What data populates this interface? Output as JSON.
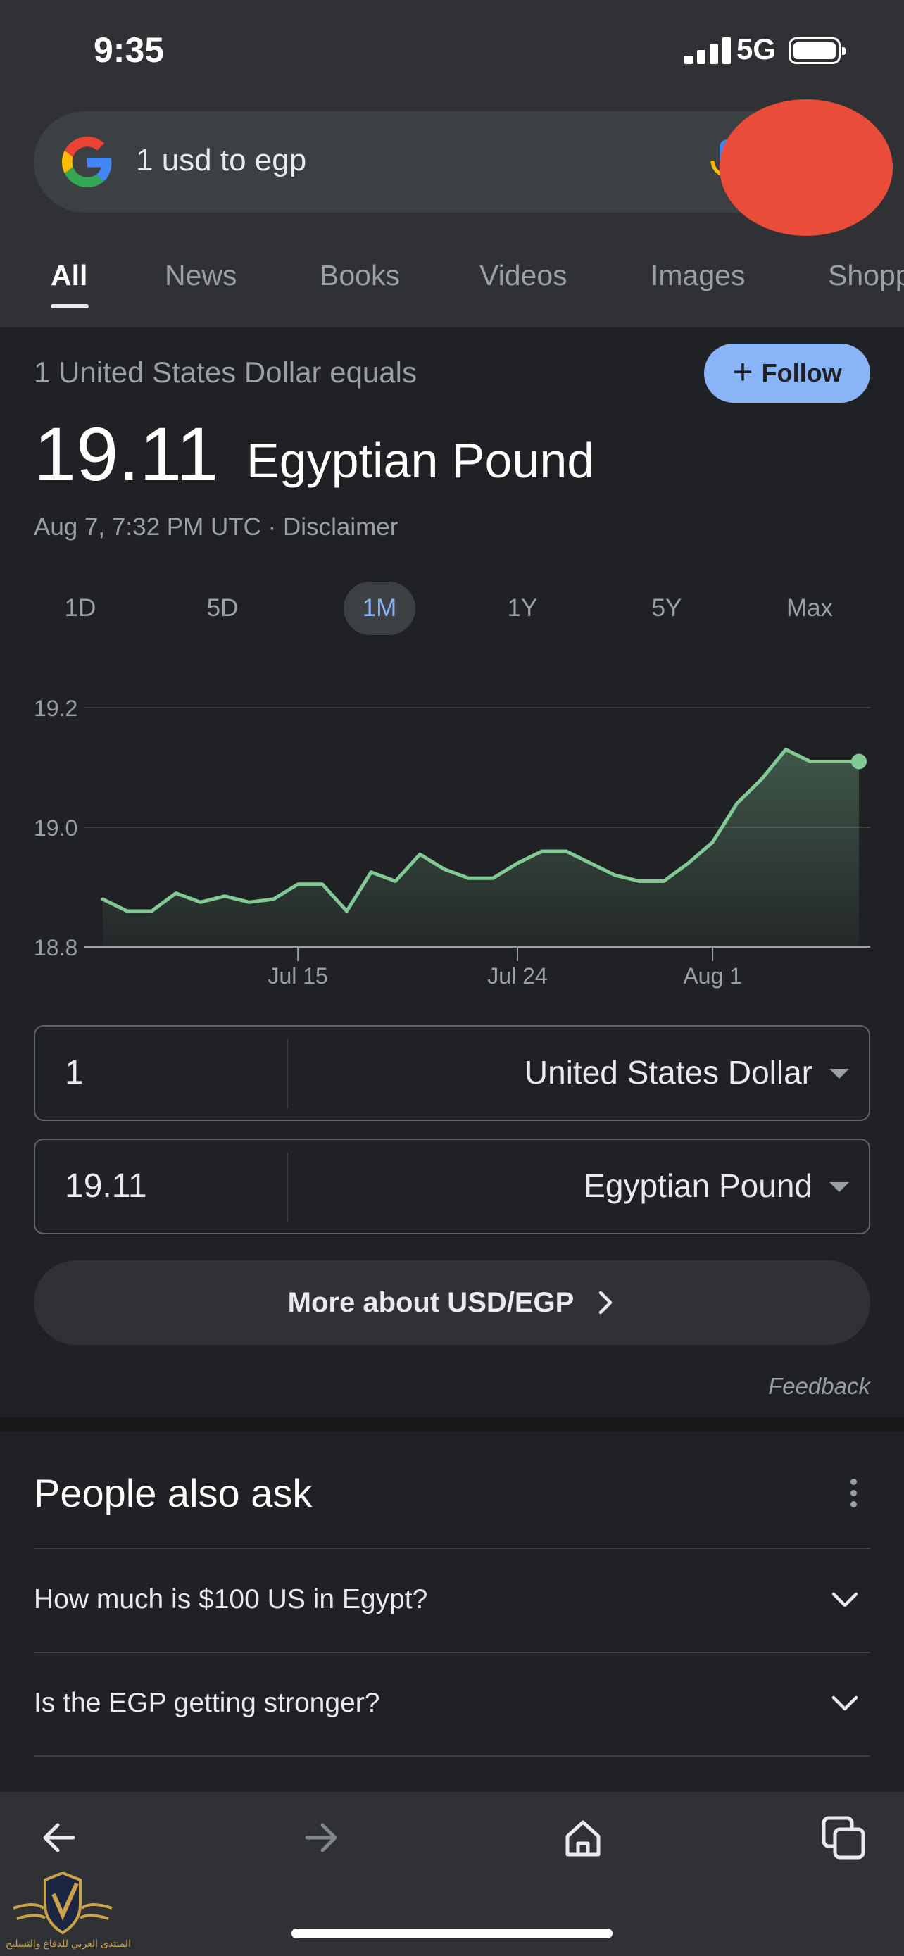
{
  "status_bar": {
    "time": "9:35",
    "network": "5G"
  },
  "search": {
    "query": "1 usd to egp"
  },
  "tabs": [
    {
      "label": "All",
      "active": true
    },
    {
      "label": "News"
    },
    {
      "label": "Books"
    },
    {
      "label": "Videos"
    },
    {
      "label": "Images"
    },
    {
      "label": "Shopp"
    }
  ],
  "converter": {
    "equals_text": "1 United States Dollar equals",
    "follow_label": "Follow",
    "rate_value": "19.11",
    "rate_currency": "Egyptian Pound",
    "timestamp_prefix": "Aug 7, 7:32 PM UTC · ",
    "disclaimer": "Disclaimer",
    "periods": [
      "1D",
      "5D",
      "1M",
      "1Y",
      "5Y",
      "Max"
    ],
    "active_period": "1M",
    "from": {
      "amount": "1",
      "currency": "United States Dollar"
    },
    "to": {
      "amount": "19.11",
      "currency": "Egyptian Pound"
    },
    "more_label": "More about USD/EGP",
    "feedback": "Feedback"
  },
  "chart_data": {
    "type": "area",
    "x_ticks": [
      "Jul 15",
      "Jul 24",
      "Aug 1"
    ],
    "y_ticks": [
      "19.2",
      "19.0",
      "18.8"
    ],
    "ylim": [
      18.8,
      19.2
    ],
    "grid": true,
    "line_color": "#81c995",
    "values": [
      18.88,
      18.86,
      18.86,
      18.89,
      18.875,
      18.885,
      18.875,
      18.88,
      18.905,
      18.905,
      18.86,
      18.925,
      18.91,
      18.955,
      18.93,
      18.915,
      18.915,
      18.94,
      18.96,
      18.96,
      18.94,
      18.92,
      18.91,
      18.91,
      18.94,
      18.975,
      19.04,
      19.08,
      19.13,
      19.11,
      19.11,
      19.11
    ]
  },
  "people_also_ask": {
    "title": "People also ask",
    "questions": [
      "How much is $100 US in Egypt?",
      "Is the EGP getting stronger?"
    ]
  },
  "icons": [
    "google-logo-icon",
    "mic-icon",
    "plus-icon",
    "chevron-right-icon",
    "more-vert-icon",
    "chevron-down-icon",
    "back-icon",
    "forward-icon",
    "home-icon",
    "tabs-icon"
  ],
  "colors": {
    "accent": "#8ab4f8",
    "chart_line": "#81c995",
    "redaction": "#ea4c3a",
    "background": "#202124"
  },
  "watermark": {
    "text": "المنتدى العربي للدفاع والتسليح"
  }
}
